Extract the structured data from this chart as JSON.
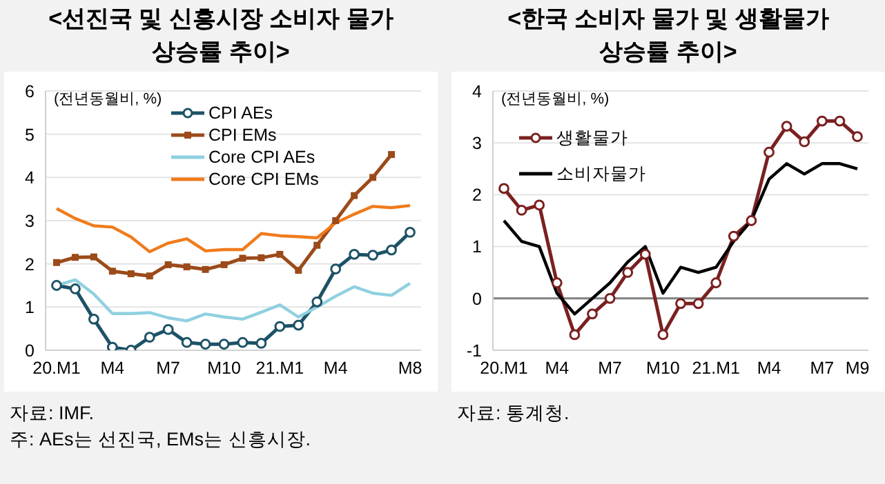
{
  "chart_data": [
    {
      "type": "line",
      "title": "<선진국 및 신흥시장 소비자 물가 상승률 추이>",
      "ylabel": "(전년동월비, %)",
      "categories": [
        "20.M1",
        null,
        null,
        "M4",
        null,
        null,
        "M7",
        null,
        null,
        "M10",
        null,
        null,
        "21.M1",
        null,
        null,
        "M4",
        null,
        null,
        null,
        "M8"
      ],
      "ylim": [
        0,
        6
      ],
      "yticks": [
        0,
        1,
        2,
        3,
        4,
        5,
        6
      ],
      "grid": "y",
      "legend": "top",
      "annotations": [
        "자료: IMF.",
        "주: AEs는 선진국, EMs는 신흥시장."
      ],
      "series": [
        {
          "name": "CPI AEs",
          "color": "#1d5266",
          "marker": "circle",
          "values": [
            1.5,
            1.42,
            0.72,
            0.07,
            0.0,
            0.3,
            0.48,
            0.18,
            0.14,
            0.14,
            0.18,
            0.16,
            0.55,
            0.58,
            1.12,
            1.88,
            2.22,
            2.2,
            2.32,
            2.73
          ]
        },
        {
          "name": "CPI EMs",
          "color": "#9c4a1a",
          "marker": "square",
          "values": [
            2.03,
            2.15,
            2.16,
            1.83,
            1.77,
            1.72,
            1.98,
            1.93,
            1.87,
            1.98,
            2.13,
            2.14,
            2.22,
            1.85,
            2.43,
            3.0,
            3.58,
            4.0,
            4.53,
            null
          ]
        },
        {
          "name": "Core CPI AEs",
          "color": "#8fd0e0",
          "marker": "none",
          "values": [
            1.5,
            1.63,
            1.3,
            0.85,
            0.85,
            0.87,
            0.75,
            0.68,
            0.84,
            0.77,
            0.72,
            0.88,
            1.05,
            0.77,
            1.0,
            1.25,
            1.47,
            1.32,
            1.27,
            1.55
          ]
        },
        {
          "name": "Core CPI EMs",
          "color": "#f07b1c",
          "marker": "none",
          "values": [
            3.28,
            3.05,
            2.88,
            2.85,
            2.62,
            2.28,
            2.48,
            2.58,
            2.3,
            2.33,
            2.33,
            2.7,
            2.65,
            2.63,
            2.6,
            2.95,
            3.15,
            3.33,
            3.3,
            3.35
          ]
        }
      ]
    },
    {
      "type": "line",
      "title": "<한국 소비자 물가 및 생활물가 상승률 추이>",
      "ylabel": "(전년동월비, %)",
      "categories": [
        "20.M1",
        null,
        null,
        "M4",
        null,
        null,
        "M7",
        null,
        null,
        "M10",
        null,
        null,
        "21.M1",
        null,
        null,
        "M4",
        null,
        null,
        "M7",
        null,
        "M9"
      ],
      "ylim": [
        -1,
        4
      ],
      "yticks": [
        -1,
        0,
        1,
        2,
        3,
        4
      ],
      "grid": "y",
      "legend": "top left",
      "annotations": [
        "자료: 통계청."
      ],
      "ref_lines": [
        {
          "axis": "y",
          "value": 0,
          "color": "#808080"
        }
      ],
      "series": [
        {
          "name": "생활물가",
          "color": "#7b2020",
          "marker": "circle",
          "values": [
            2.12,
            1.7,
            1.8,
            0.3,
            -0.7,
            -0.3,
            0.0,
            0.5,
            0.85,
            -0.7,
            -0.1,
            -0.1,
            0.3,
            1.2,
            1.5,
            2.82,
            3.32,
            3.02,
            3.42,
            3.42,
            3.12
          ]
        },
        {
          "name": "소비자물가",
          "color": "#000000",
          "marker": "none",
          "values": [
            1.5,
            1.1,
            1.0,
            0.1,
            -0.3,
            0.0,
            0.3,
            0.7,
            1.0,
            0.1,
            0.6,
            0.5,
            0.6,
            1.1,
            1.5,
            2.3,
            2.6,
            2.4,
            2.6,
            2.6,
            2.5
          ]
        }
      ]
    }
  ]
}
